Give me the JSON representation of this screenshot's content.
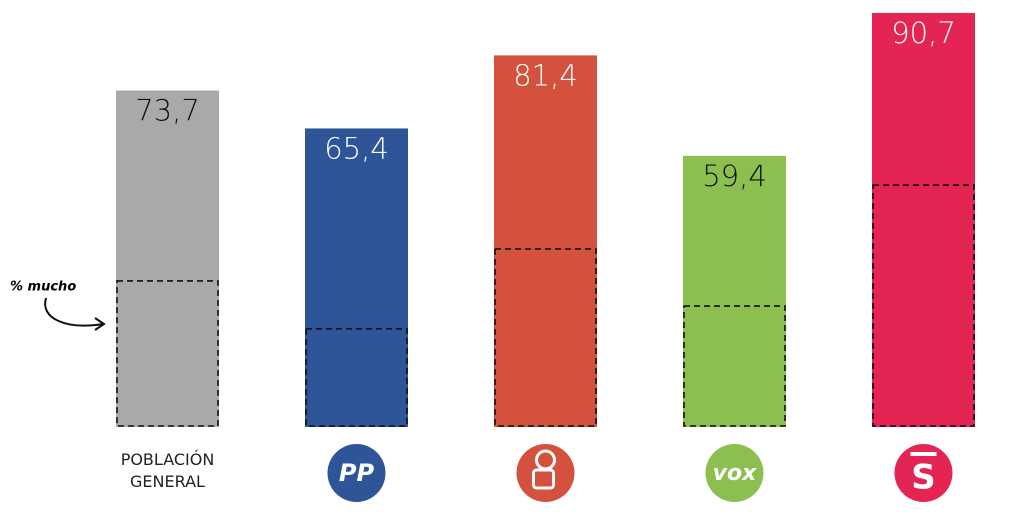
{
  "chart_data": {
    "type": "bar",
    "categories": [
      "POBLACIÓN GENERAL",
      "PP",
      null,
      "vox",
      null
    ],
    "values": [
      73.7,
      65.4,
      81.4,
      59.4,
      90.7
    ],
    "value_labels": [
      "73,7",
      "65,4",
      "81,4",
      "59,4",
      "90,7"
    ],
    "colors": [
      "#a9a9a9",
      "#2e5597",
      "#d3513d",
      "#8cbf4f",
      "#e42553"
    ],
    "label_colors": [
      "#111111",
      "#ffffff",
      "#ffffff",
      "#111111",
      "#ffffff"
    ],
    "mucho": [
      32.0,
      21.5,
      39.0,
      26.5,
      53.0
    ],
    "annotation": "% mucho",
    "ylim": [
      0,
      100
    ]
  }
}
